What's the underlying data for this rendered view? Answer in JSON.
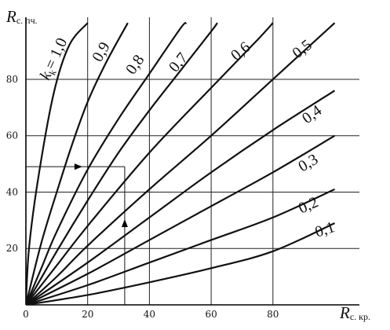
{
  "chart_data": {
    "type": "line",
    "x_axis": {
      "label_main": "R",
      "label_sub": "с. кр.",
      "range": [
        0,
        108
      ],
      "ticks": [
        0,
        20,
        40,
        60,
        80
      ],
      "tick_labels": [
        "0",
        "20",
        "40",
        "60",
        "80"
      ]
    },
    "y_axis": {
      "label_main": "R",
      "label_sub": "с. пч.",
      "range": [
        0,
        102
      ],
      "ticks": [
        20,
        40,
        60,
        80
      ],
      "tick_labels": [
        "20",
        "40",
        "60",
        "80"
      ]
    },
    "grid": true,
    "series": [
      {
        "k": 1.0,
        "label_prefix": "k",
        "label_sub": "k",
        "label_eq": "=",
        "label": "1,0"
      },
      {
        "k": 0.9,
        "label": "0,9"
      },
      {
        "k": 0.8,
        "label": "0,8"
      },
      {
        "k": 0.7,
        "label": "0,7"
      },
      {
        "k": 0.6,
        "label": "0,6"
      },
      {
        "k": 0.5,
        "label": "0,5"
      },
      {
        "k": 0.4,
        "label": "0,4"
      },
      {
        "k": 0.3,
        "label": "0,3"
      },
      {
        "k": 0.2,
        "label": "0,2"
      },
      {
        "k": 0.1,
        "label": "0,1"
      }
    ],
    "example": {
      "x": 32,
      "y": 49
    }
  }
}
